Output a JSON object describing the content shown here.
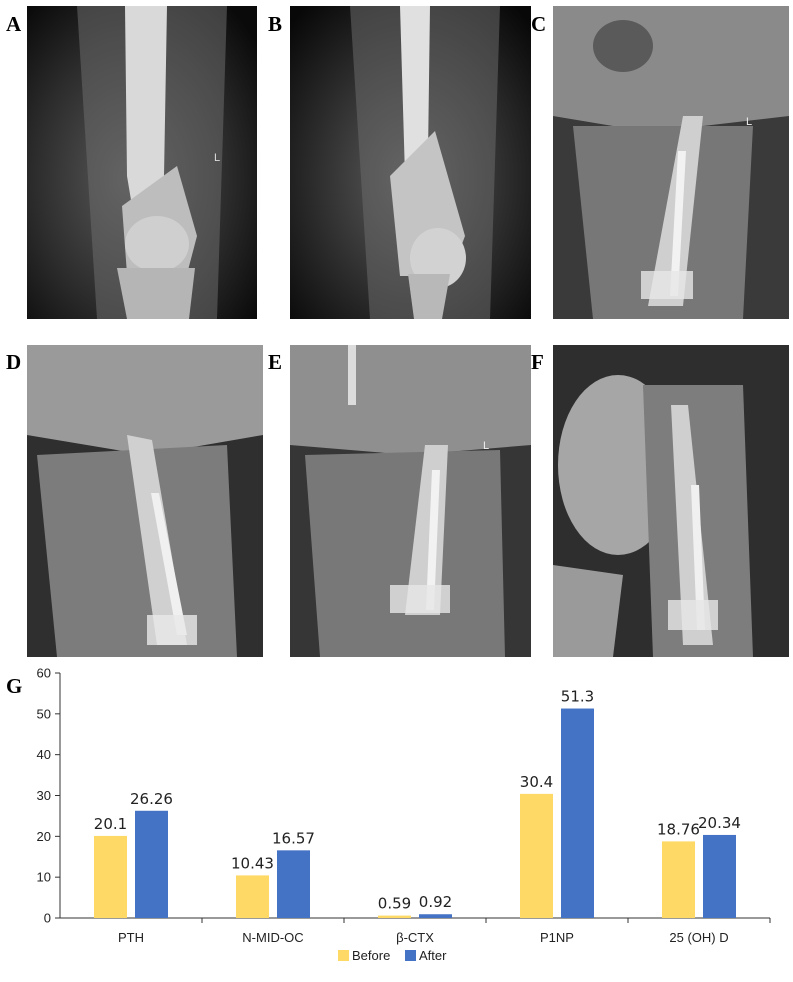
{
  "panels": [
    {
      "letter": "A",
      "marker": "L"
    },
    {
      "letter": "B",
      "marker": ""
    },
    {
      "letter": "C",
      "marker": "L"
    },
    {
      "letter": "D",
      "marker": ""
    },
    {
      "letter": "E",
      "marker": "L"
    },
    {
      "letter": "F",
      "marker": ""
    }
  ],
  "chart_letter": "G",
  "chart_data": {
    "type": "bar",
    "categories": [
      "PTH",
      "N-MID-OC",
      "β-CTX",
      "P1NP",
      "25 (OH) D"
    ],
    "series": [
      {
        "name": "Before",
        "color": "#FFD966",
        "values": [
          20.1,
          10.43,
          0.59,
          30.4,
          18.76
        ],
        "labels": [
          "20.1",
          "10.43",
          "0.59",
          "30.4",
          "18.76"
        ]
      },
      {
        "name": "After",
        "color": "#4472C4",
        "values": [
          26.26,
          16.57,
          0.92,
          51.3,
          20.34
        ],
        "labels": [
          "26.26",
          "16.57",
          "0.92",
          "51.3",
          "20.34"
        ]
      }
    ],
    "yticks": [
      "0",
      "10",
      "20",
      "30",
      "40",
      "50",
      "60"
    ],
    "ylim": [
      0,
      60
    ],
    "grid": false,
    "legend_position": "bottom-center",
    "title": "",
    "xlabel": "",
    "ylabel": ""
  }
}
